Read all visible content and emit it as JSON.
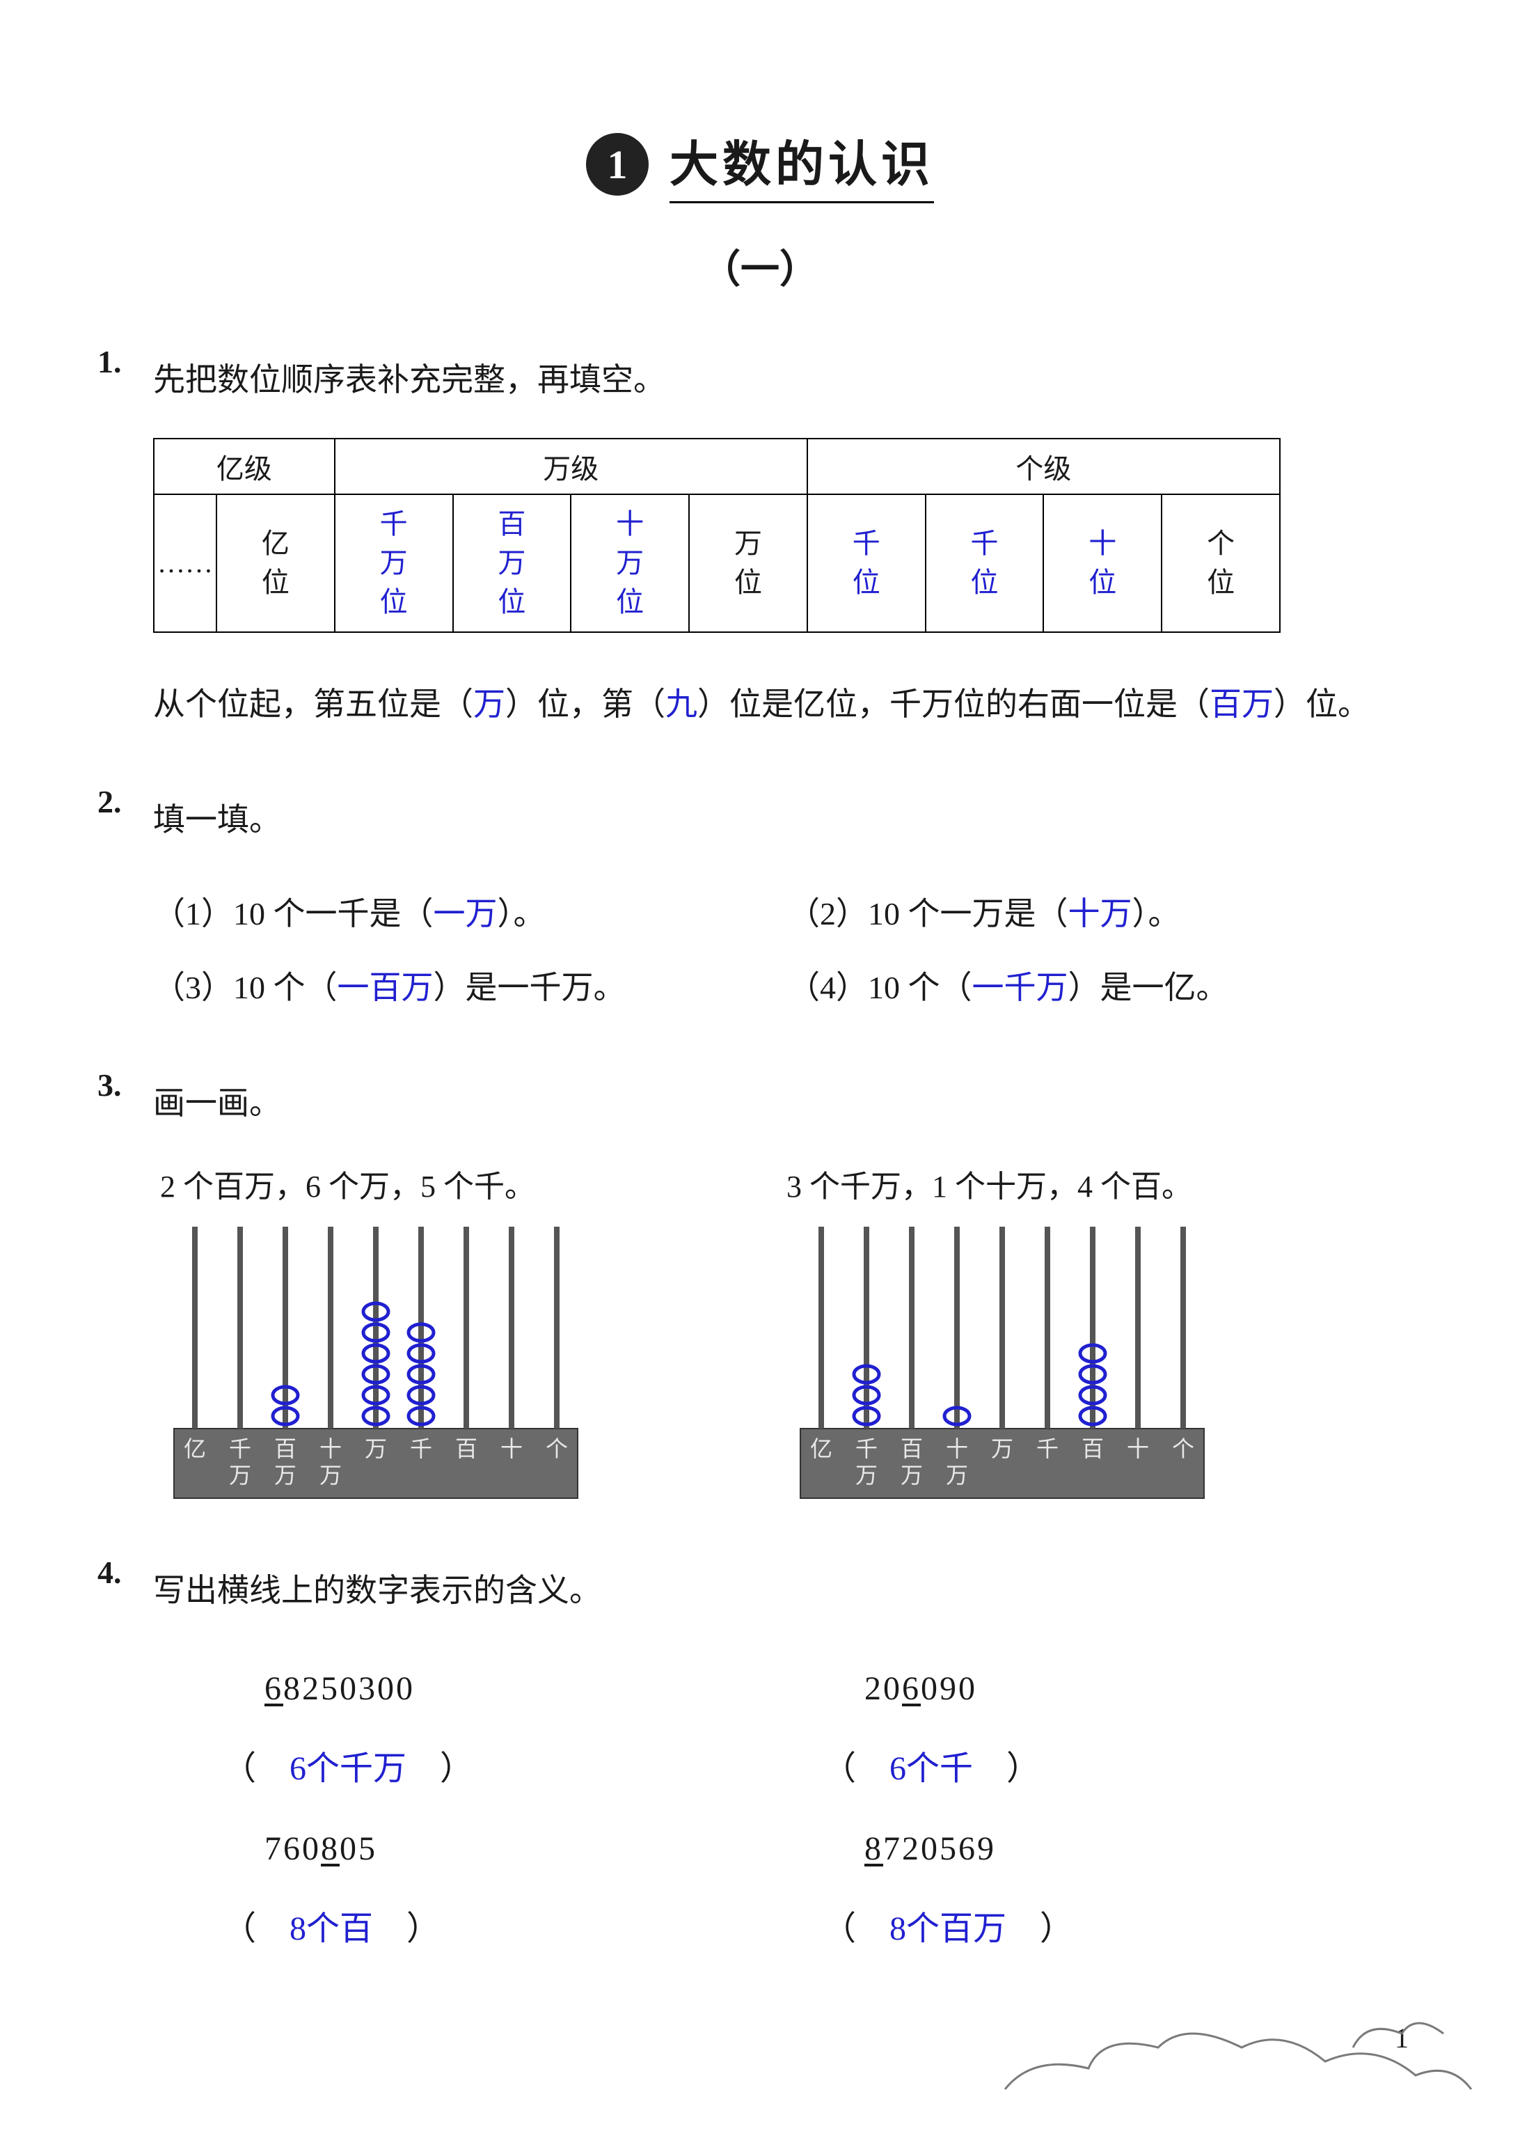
{
  "chapter": {
    "circle_number": "1",
    "title": "大数的认识",
    "section_label": "（一）"
  },
  "q1": {
    "num": "1.",
    "prompt": "先把数位顺序表补充完整，再填空。",
    "table": {
      "headers": [
        "亿级",
        "万级",
        "个级"
      ],
      "row2_cells": [
        {
          "dots": "……"
        },
        {
          "top": "亿",
          "bottom": "位",
          "cls": ""
        },
        {
          "top": "千",
          "mid": "万",
          "bottom": "位",
          "cls": "answer"
        },
        {
          "top": "百",
          "mid": "万",
          "bottom": "位",
          "cls": "answer"
        },
        {
          "top": "",
          "mid": "万",
          "bottom": "位",
          "cls": "answer"
        },
        {
          "top": "万",
          "bottom": "位",
          "cls": ""
        },
        {
          "top": "千",
          "bottom": "位",
          "cls": "answer"
        },
        {
          "top": "千",
          "bottom": "位",
          "cls": "answer"
        },
        {
          "top": "十",
          "bottom": "位",
          "cls": "answer"
        },
        {
          "top": "个",
          "bottom": "位",
          "cls": ""
        }
      ],
      "r2c4": {
        "top": "十",
        "mid": "万",
        "bottom": "位"
      }
    },
    "sentence": {
      "pre1": "从个位起，第五位是（",
      "blank1": "万",
      "mid1": "）位，第（",
      "blank2": "九",
      "mid2": "）位是亿位，千万位的右面一位是（",
      "blank3": "百万",
      "post": "）位。"
    }
  },
  "q2": {
    "num": "2.",
    "prompt": "填一填。",
    "items": [
      {
        "pre": "（1）10 个一千是（",
        "ans": "一万",
        "post": "）。"
      },
      {
        "pre": "（2）10 个一万是（",
        "ans": "十万",
        "post": "）。"
      },
      {
        "pre": "（3）10 个（",
        "ans": "一百万",
        "post": "）是一千万。"
      },
      {
        "pre": "（4）10 个（",
        "ans": "一千万",
        "post": "）是一亿。"
      }
    ]
  },
  "q3": {
    "num": "3.",
    "prompt": "画一画。",
    "abacus_common": {
      "rod_labels_top": [
        "亿",
        "千",
        "百",
        "十",
        "万",
        "千",
        "百",
        "十",
        "个"
      ],
      "rod_labels_bottom": [
        "",
        "万",
        "万",
        "万",
        "",
        "",
        "",
        "",
        ""
      ],
      "base_fill": "#6a6a6a",
      "bead_color": "#2020d0",
      "rod_color": "#555555",
      "label_color": "#e8e8e8",
      "background": "#ffffff"
    },
    "left": {
      "caption": "2 个百万，6 个万，5 个千。",
      "beads": [
        0,
        0,
        2,
        0,
        6,
        5,
        0,
        0,
        0
      ]
    },
    "right": {
      "caption": "3 个千万，1 个十万，4 个百。",
      "beads": [
        0,
        3,
        0,
        1,
        0,
        0,
        4,
        0,
        0
      ]
    }
  },
  "q4": {
    "num": "4.",
    "prompt": "写出横线上的数字表示的含义。",
    "items": [
      {
        "number_pre": "",
        "u": "6",
        "number_post": "8250300",
        "answer": "6个千万"
      },
      {
        "number_pre": "20",
        "u": "6",
        "number_post": "090",
        "answer": "6个千"
      },
      {
        "number_pre": "760",
        "u": "8",
        "number_post": "05",
        "answer": "8个百"
      },
      {
        "number_pre": "",
        "u": "8",
        "number_post": "720569",
        "answer": "8个百万"
      }
    ]
  },
  "pageNumber": "1",
  "colors": {
    "answer": "#2020d0",
    "text": "#1a1a1a"
  }
}
